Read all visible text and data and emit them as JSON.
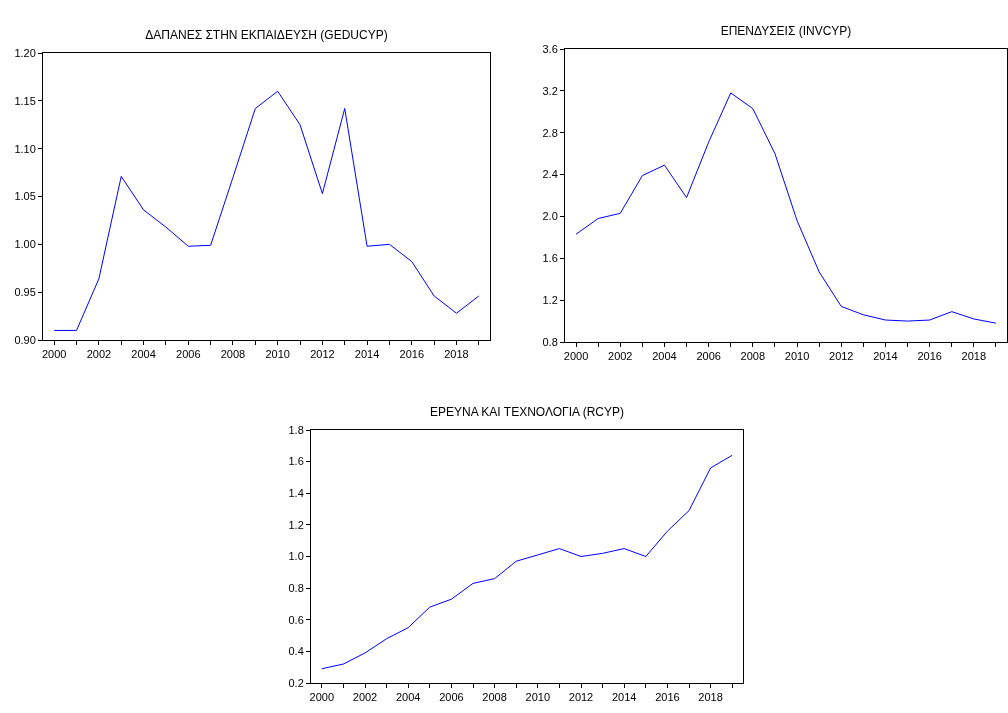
{
  "chart_data": [
    {
      "type": "line",
      "title": "ΔΑΠΑΝΕΣ ΣΤΗΝ ΕΚΠΑΙΔΕΥΣΗ (GEDUCYP)",
      "x": [
        2000,
        2001,
        2002,
        2003,
        2004,
        2005,
        2006,
        2007,
        2008,
        2009,
        2010,
        2011,
        2012,
        2013,
        2014,
        2015,
        2016,
        2017,
        2018,
        2019
      ],
      "series": [
        {
          "color": "#0000ff",
          "values": [
            0.91,
            0.91,
            0.964,
            1.071,
            1.036,
            1.018,
            0.998,
            0.999,
            1.07,
            1.142,
            1.16,
            1.125,
            1.053,
            1.142,
            0.998,
            1.0,
            0.982,
            0.946,
            0.928,
            0.946
          ]
        }
      ],
      "xlim": [
        1999.5,
        2019.5
      ],
      "xticks": [
        2000,
        {
          "value": 2001,
          "label": null
        },
        2002,
        {
          "value": 2003,
          "label": null
        },
        2004,
        {
          "value": 2005,
          "label": null
        },
        2006,
        {
          "value": 2007,
          "label": null
        },
        2008,
        {
          "value": 2009,
          "label": null
        },
        2010,
        {
          "value": 2011,
          "label": null
        },
        2012,
        {
          "value": 2013,
          "label": null
        },
        2014,
        {
          "value": 2015,
          "label": null
        },
        2016,
        {
          "value": 2017,
          "label": null
        },
        2018,
        {
          "value": 2019,
          "label": null
        }
      ],
      "ylim": [
        0.9,
        1.2
      ],
      "yticks": [
        {
          "value": 0.9,
          "label": "0.90"
        },
        {
          "value": 0.95,
          "label": "0.95"
        },
        {
          "value": 1.0,
          "label": "1.00"
        },
        {
          "value": 1.05,
          "label": "1.05"
        },
        {
          "value": 1.1,
          "label": "1.10"
        },
        {
          "value": 1.15,
          "label": "1.15"
        },
        {
          "value": 1.2,
          "label": "1.20"
        }
      ],
      "grid": false,
      "legend": false,
      "line_style": "solid"
    },
    {
      "type": "line",
      "title": "ΕΠΕΝΔΥΣΕΙΣ (INVCYP)",
      "x": [
        2000,
        2001,
        2002,
        2003,
        2004,
        2005,
        2006,
        2007,
        2008,
        2009,
        2010,
        2011,
        2012,
        2013,
        2014,
        2015,
        2016,
        2017,
        2018,
        2019
      ],
      "series": [
        {
          "color": "#0000ff",
          "values": [
            1.83,
            1.98,
            2.03,
            2.39,
            2.49,
            2.18,
            2.71,
            3.18,
            3.03,
            2.6,
            1.96,
            1.47,
            1.14,
            1.06,
            1.01,
            1.0,
            1.01,
            1.09,
            1.02,
            0.98
          ]
        }
      ],
      "xlim": [
        1999.5,
        2019.5
      ],
      "xticks": [
        2000,
        {
          "value": 2001,
          "label": null
        },
        2002,
        {
          "value": 2003,
          "label": null
        },
        2004,
        {
          "value": 2005,
          "label": null
        },
        2006,
        {
          "value": 2007,
          "label": null
        },
        2008,
        {
          "value": 2009,
          "label": null
        },
        2010,
        {
          "value": 2011,
          "label": null
        },
        2012,
        {
          "value": 2013,
          "label": null
        },
        2014,
        {
          "value": 2015,
          "label": null
        },
        2016,
        {
          "value": 2017,
          "label": null
        },
        2018,
        {
          "value": 2019,
          "label": null
        }
      ],
      "ylim": [
        0.8,
        3.6
      ],
      "yticks": [
        {
          "value": 0.8,
          "label": "0.8"
        },
        {
          "value": 1.2,
          "label": "1.2"
        },
        {
          "value": 1.6,
          "label": "1.6"
        },
        {
          "value": 2.0,
          "label": "2.0"
        },
        {
          "value": 2.4,
          "label": "2.4"
        },
        {
          "value": 2.8,
          "label": "2.8"
        },
        {
          "value": 3.2,
          "label": "3.2"
        },
        {
          "value": 3.6,
          "label": "3.6"
        }
      ],
      "grid": false,
      "legend": false,
      "line_style": "solid"
    },
    {
      "type": "line",
      "title": "ΕΡΕΥΝΑ ΚΑΙ ΤΕΧΝΟΛΟΓΙΑ (RCYP)",
      "x": [
        2000,
        2001,
        2002,
        2003,
        2004,
        2005,
        2006,
        2007,
        2008,
        2009,
        2010,
        2011,
        2012,
        2013,
        2014,
        2015,
        2016,
        2017,
        2018,
        2019
      ],
      "series": [
        {
          "color": "#0000ff",
          "values": [
            0.29,
            0.32,
            0.39,
            0.48,
            0.55,
            0.68,
            0.73,
            0.83,
            0.86,
            0.97,
            1.01,
            1.05,
            1.0,
            1.02,
            1.05,
            1.0,
            1.16,
            1.29,
            1.56,
            1.64
          ]
        }
      ],
      "xlim": [
        1999.5,
        2019.5
      ],
      "xticks": [
        2000,
        {
          "value": 2001,
          "label": null
        },
        2002,
        {
          "value": 2003,
          "label": null
        },
        2004,
        {
          "value": 2005,
          "label": null
        },
        2006,
        {
          "value": 2007,
          "label": null
        },
        2008,
        {
          "value": 2009,
          "label": null
        },
        2010,
        {
          "value": 2011,
          "label": null
        },
        2012,
        {
          "value": 2013,
          "label": null
        },
        2014,
        {
          "value": 2015,
          "label": null
        },
        2016,
        {
          "value": 2017,
          "label": null
        },
        2018,
        {
          "value": 2019,
          "label": null
        }
      ],
      "ylim": [
        0.2,
        1.8
      ],
      "yticks": [
        {
          "value": 0.2,
          "label": "0.2"
        },
        {
          "value": 0.4,
          "label": "0.4"
        },
        {
          "value": 0.6,
          "label": "0.6"
        },
        {
          "value": 0.8,
          "label": "0.8"
        },
        {
          "value": 1.0,
          "label": "1.0"
        },
        {
          "value": 1.2,
          "label": "1.2"
        },
        {
          "value": 1.4,
          "label": "1.4"
        },
        {
          "value": 1.6,
          "label": "1.6"
        },
        {
          "value": 1.8,
          "label": "1.8"
        }
      ],
      "grid": false,
      "legend": false,
      "line_style": "solid"
    }
  ]
}
